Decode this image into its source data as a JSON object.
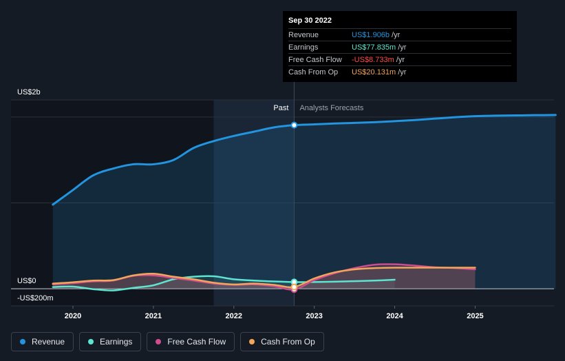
{
  "chart_data": {
    "type": "line",
    "y_axis": {
      "top_label": "US$2b",
      "zero_label": "US$0",
      "bottom_label": "-US$200m",
      "ylim": [
        -200,
        2200
      ]
    },
    "x_ticks": [
      "2020",
      "2021",
      "2022",
      "2023",
      "2024",
      "2025"
    ],
    "past_label": "Past",
    "forecast_label": "Analysts Forecasts",
    "divider_x": 2022.75,
    "series": [
      {
        "name": "Revenue",
        "color": "#2394df",
        "points": [
          [
            2019.75,
            980
          ],
          [
            2020.0,
            1150
          ],
          [
            2020.25,
            1320
          ],
          [
            2020.5,
            1400
          ],
          [
            2020.75,
            1450
          ],
          [
            2021.0,
            1450
          ],
          [
            2021.25,
            1500
          ],
          [
            2021.5,
            1640
          ],
          [
            2021.75,
            1720
          ],
          [
            2022.0,
            1780
          ],
          [
            2022.25,
            1830
          ],
          [
            2022.5,
            1880
          ],
          [
            2022.75,
            1906
          ],
          [
            2023.0,
            1915
          ],
          [
            2023.25,
            1925
          ],
          [
            2023.5,
            1932
          ],
          [
            2023.75,
            1940
          ],
          [
            2024.0,
            1952
          ],
          [
            2024.25,
            1965
          ],
          [
            2024.5,
            1982
          ],
          [
            2024.75,
            1998
          ],
          [
            2025.0,
            2010
          ],
          [
            2025.25,
            2016
          ],
          [
            2025.5,
            2019
          ],
          [
            2025.75,
            2022
          ],
          [
            2026.0,
            2024
          ]
        ]
      },
      {
        "name": "Earnings",
        "color": "#5ee5d0",
        "points": [
          [
            2019.75,
            20
          ],
          [
            2020.0,
            25
          ],
          [
            2020.25,
            -5
          ],
          [
            2020.5,
            -20
          ],
          [
            2020.75,
            10
          ],
          [
            2021.0,
            40
          ],
          [
            2021.25,
            110
          ],
          [
            2021.5,
            140
          ],
          [
            2021.75,
            145
          ],
          [
            2022.0,
            110
          ],
          [
            2022.25,
            95
          ],
          [
            2022.5,
            85
          ],
          [
            2022.75,
            77.835
          ],
          [
            2023.0,
            78
          ],
          [
            2023.25,
            82
          ],
          [
            2023.5,
            88
          ],
          [
            2023.75,
            95
          ],
          [
            2024.0,
            105
          ]
        ]
      },
      {
        "name": "Free Cash Flow",
        "color": "#cf4c8f",
        "points": [
          [
            2019.75,
            50
          ],
          [
            2020.0,
            65
          ],
          [
            2020.25,
            85
          ],
          [
            2020.5,
            95
          ],
          [
            2020.75,
            150
          ],
          [
            2021.0,
            155
          ],
          [
            2021.25,
            125
          ],
          [
            2021.5,
            95
          ],
          [
            2021.75,
            60
          ],
          [
            2022.0,
            45
          ],
          [
            2022.25,
            50
          ],
          [
            2022.5,
            30
          ],
          [
            2022.75,
            -8.733
          ],
          [
            2023.0,
            100
          ],
          [
            2023.25,
            180
          ],
          [
            2023.5,
            240
          ],
          [
            2023.75,
            280
          ],
          [
            2024.0,
            285
          ],
          [
            2024.25,
            270
          ],
          [
            2024.5,
            250
          ],
          [
            2024.75,
            240
          ],
          [
            2025.0,
            225
          ]
        ]
      },
      {
        "name": "Cash From Op",
        "color": "#f2a65a",
        "points": [
          [
            2019.75,
            60
          ],
          [
            2020.0,
            75
          ],
          [
            2020.25,
            95
          ],
          [
            2020.5,
            100
          ],
          [
            2020.75,
            155
          ],
          [
            2021.0,
            175
          ],
          [
            2021.25,
            140
          ],
          [
            2021.5,
            110
          ],
          [
            2021.75,
            70
          ],
          [
            2022.0,
            50
          ],
          [
            2022.25,
            60
          ],
          [
            2022.5,
            45
          ],
          [
            2022.75,
            20.131
          ],
          [
            2023.0,
            120
          ],
          [
            2023.25,
            190
          ],
          [
            2023.5,
            225
          ],
          [
            2023.75,
            240
          ],
          [
            2024.0,
            245
          ],
          [
            2024.25,
            245
          ],
          [
            2024.5,
            245
          ],
          [
            2024.75,
            245
          ],
          [
            2025.0,
            245
          ]
        ]
      }
    ]
  },
  "tooltip": {
    "date": "Sep 30 2022",
    "rows": [
      {
        "label": "Revenue",
        "value": "US$1.906b",
        "unit": "/yr",
        "color": "#2394df"
      },
      {
        "label": "Earnings",
        "value": "US$77.835m",
        "unit": "/yr",
        "color": "#5ee5d0"
      },
      {
        "label": "Free Cash Flow",
        "value": "-US$8.733m",
        "unit": "/yr",
        "color": "#ff4a4a"
      },
      {
        "label": "Cash From Op",
        "value": "US$20.131m",
        "unit": "/yr",
        "color": "#f2a65a"
      }
    ]
  },
  "legend": [
    {
      "label": "Revenue",
      "color": "#2394df"
    },
    {
      "label": "Earnings",
      "color": "#5ee5d0"
    },
    {
      "label": "Free Cash Flow",
      "color": "#cf4c8f"
    },
    {
      "label": "Cash From Op",
      "color": "#f2a65a"
    }
  ]
}
